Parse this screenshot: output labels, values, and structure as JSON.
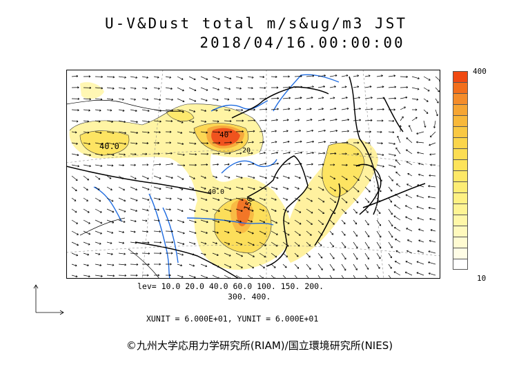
{
  "title": {
    "line1": "U-V&Dust total m/s&ug/m3 JST",
    "line2": "2018/04/16.00:00:00"
  },
  "colorbar": {
    "max_label": "400",
    "min_label": "10",
    "colors": [
      "#f04a12",
      "#f26f1c",
      "#f48c2a",
      "#f6a533",
      "#f8b83a",
      "#f9c843",
      "#fbd54b",
      "#fcdd52",
      "#fde35a",
      "#fde866",
      "#fded74",
      "#fef183",
      "#fef494",
      "#fff7a8",
      "#fff9bd",
      "#fffbd2",
      "#fffde6",
      "#ffffff"
    ]
  },
  "levels": {
    "line1": "lev= 10.0 20.0 40.0 60.0 100. 150. 200.",
    "line2": "300. 400."
  },
  "units": "XUNIT = 6.000E+01, YUNIT = 6.000E+01",
  "contour_labels": [
    "40.0",
    "40.0",
    "40",
    "150",
    "20"
  ],
  "credit": "©九州大学応用力学研究所(RIAM)/国立環境研究所(NIES)"
}
